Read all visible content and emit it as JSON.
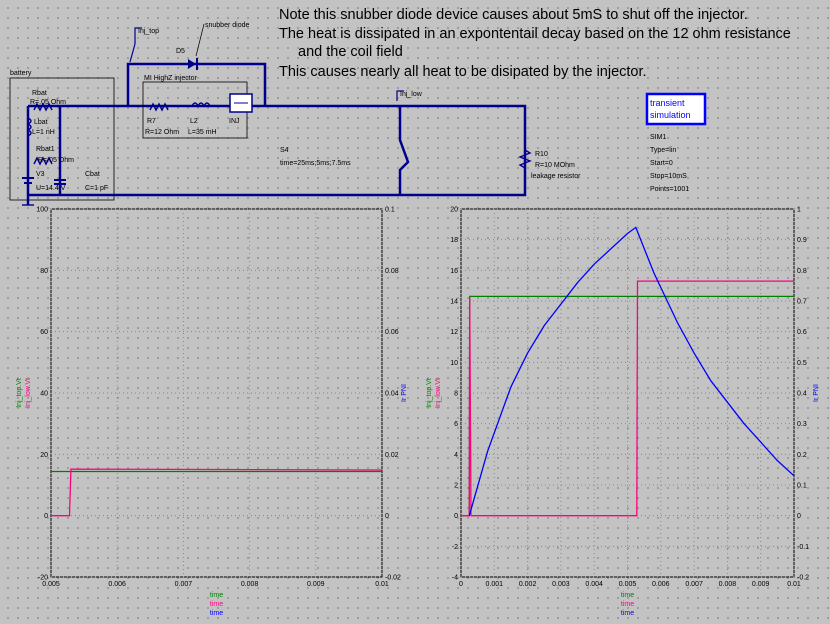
{
  "note": {
    "line1": "Note this snubber diode device causes about 5mS to shut off the injector.",
    "line2": "The heat is dissipated in an expontentail decay based on the 12 ohm resistance",
    "line3": "and the coil field",
    "line4": "This causes nearly all heat to be disipated by the injector."
  },
  "schematic": {
    "battery_label": "battery",
    "rbat": {
      "name": "Rbat",
      "value": "R=.05 Ohm"
    },
    "lbat": {
      "name": "Lbat",
      "value": "L=1 nH"
    },
    "rbat1": {
      "name": "Rbat1",
      "value": "R=.05 Ohm"
    },
    "v3": {
      "name": "V3",
      "value": "U=14.4 V"
    },
    "cbat": {
      "name": "Cbat",
      "value": "C=1 pF"
    },
    "inj_top_label": "Inj_top",
    "inj_low_label": "Inj_low",
    "snubber_label": "snubber diode",
    "d5": "D5",
    "injector_title": "MI HighZ injector",
    "r7": {
      "name": "R7",
      "value": "R=12 Ohm"
    },
    "l2": {
      "name": "L2",
      "value": "L=35 mH"
    },
    "inj": "INJ",
    "s4": {
      "name": "S4",
      "value": "time=25ms;5ms;7.5ms"
    },
    "r10": {
      "name": "R10",
      "value": "R=10 MOhm",
      "note": "leakage resistor"
    },
    "sim_box": {
      "line1": "transient",
      "line2": "simulation"
    },
    "sim_params": [
      "SIM1",
      "Type=lin",
      "Start=0",
      "Stop=10mS",
      "Points=1001"
    ]
  },
  "colors": {
    "inj_low": "#ff0080",
    "inj_top": "#008000",
    "inj_current": "#0000ff",
    "wire": "#00008b"
  },
  "chart_data": [
    {
      "type": "line",
      "title": "",
      "xlim": [
        0.005,
        0.01
      ],
      "ylim": [
        -20,
        100
      ],
      "y2lim": [
        -0.02,
        0.1
      ],
      "x_ticks": [
        "0.005",
        "0.006",
        "0.007",
        "0.008",
        "0.009",
        "0.01"
      ],
      "y_ticks": [
        "-20",
        "0",
        "20",
        "40",
        "60",
        "80",
        "100"
      ],
      "y2_ticks": [
        "-0.02",
        "0",
        "0.02",
        "0.04",
        "0.06",
        "0.08",
        "0.1"
      ],
      "y_labels": [
        {
          "text": "Inj_top.Vt",
          "color": "#008000"
        },
        {
          "text": "Inj_low.Vt",
          "color": "#ff0080"
        }
      ],
      "y2_label": {
        "text": "Ir PNI",
        "color": "#0000ff"
      },
      "x_labels": [
        {
          "text": "time",
          "color": "#008000"
        },
        {
          "text": "time",
          "color": "#ff0080"
        },
        {
          "text": "time",
          "color": "#0000ff"
        }
      ],
      "series": [
        {
          "name": "Inj_top.Vt",
          "color": "#008000",
          "axis": "left",
          "x": [
            0.005,
            0.01
          ],
          "y": [
            14.4,
            14.4
          ]
        },
        {
          "name": "Inj_low.Vt",
          "color": "#ff0080",
          "axis": "left",
          "x": [
            0.005,
            0.00528,
            0.0053,
            0.01
          ],
          "y": [
            0,
            0,
            15.2,
            14.9
          ]
        }
      ]
    },
    {
      "type": "line",
      "title": "",
      "xlim": [
        0,
        0.01
      ],
      "ylim": [
        -4,
        20
      ],
      "y2lim": [
        -0.2,
        1
      ],
      "x_ticks": [
        "0",
        "0.001",
        "0.002",
        "0.003",
        "0.004",
        "0.005",
        "0.006",
        "0.007",
        "0.008",
        "0.009",
        "0.01"
      ],
      "y_ticks": [
        "-4",
        "-2",
        "0",
        "2",
        "4",
        "6",
        "8",
        "10",
        "12",
        "14",
        "16",
        "18",
        "20"
      ],
      "y2_ticks": [
        "-0.2",
        "-0.1",
        "0",
        "0.1",
        "0.2",
        "0.3",
        "0.4",
        "0.5",
        "0.6",
        "0.7",
        "0.8",
        "0.9",
        "1"
      ],
      "y_labels": [
        {
          "text": "Inj_top.Vt",
          "color": "#008000"
        },
        {
          "text": "Inj_low.Vt",
          "color": "#ff0080"
        }
      ],
      "y2_label": {
        "text": "Ir PNI",
        "color": "#0000ff"
      },
      "x_labels": [
        {
          "text": "time",
          "color": "#008000"
        },
        {
          "text": "time",
          "color": "#ff0080"
        },
        {
          "text": "time",
          "color": "#0000ff"
        }
      ],
      "series": [
        {
          "name": "Inj_top.Vt",
          "color": "#008000",
          "axis": "left",
          "x": [
            0,
            0.00025,
            0.00026,
            0.01
          ],
          "y": [
            0,
            0,
            14.3,
            14.3
          ]
        },
        {
          "name": "Inj_low.Vt",
          "color": "#ff0080",
          "axis": "left",
          "x": [
            0,
            0.00025,
            0.00026,
            0.0003,
            0.00528,
            0.0053,
            0.0075,
            0.01
          ],
          "y": [
            0,
            0,
            14.3,
            0,
            0,
            15.3,
            15.3,
            15.3
          ]
        },
        {
          "name": "Ir PNI",
          "color": "#0000ff",
          "axis": "right",
          "x": [
            0.00025,
            0.0008,
            0.0015,
            0.002,
            0.0025,
            0.003,
            0.0035,
            0.004,
            0.0045,
            0.005,
            0.00525,
            0.0058,
            0.0065,
            0.007,
            0.0075,
            0.008,
            0.0085,
            0.009,
            0.0095,
            0.01
          ],
          "y": [
            0,
            0.21,
            0.42,
            0.53,
            0.62,
            0.69,
            0.76,
            0.82,
            0.87,
            0.92,
            0.94,
            0.79,
            0.63,
            0.53,
            0.44,
            0.37,
            0.3,
            0.24,
            0.18,
            0.13
          ]
        }
      ]
    }
  ]
}
